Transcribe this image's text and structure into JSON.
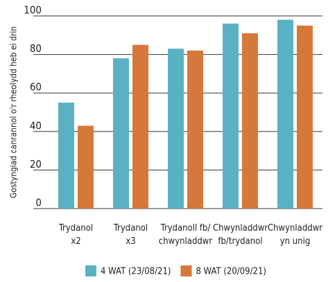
{
  "chart_data": {
    "type": "bar",
    "ylabel": "Gostyngiad canrannol o'r rheolydd heb ei drin",
    "categories": [
      [
        "Trydanol",
        "x2"
      ],
      [
        "Trydanol",
        "x3"
      ],
      [
        "Trydanoll fb/",
        "chwynladdwr"
      ],
      [
        "Chwynladdwr",
        "fb/trydanol"
      ],
      [
        "Chwynladdwr",
        "yn unig"
      ]
    ],
    "series": [
      {
        "name": "4 WAT (23/08/21)",
        "color": "#5bb1c4",
        "values": [
          55,
          78,
          83,
          96,
          98
        ]
      },
      {
        "name": "8 WAT (20/09/21)",
        "color": "#d6783a",
        "values": [
          43,
          85,
          82,
          91,
          95
        ]
      }
    ],
    "ylim": [
      0,
      100
    ],
    "yticks": [
      0,
      20,
      40,
      60,
      80,
      100
    ],
    "grid": true
  }
}
